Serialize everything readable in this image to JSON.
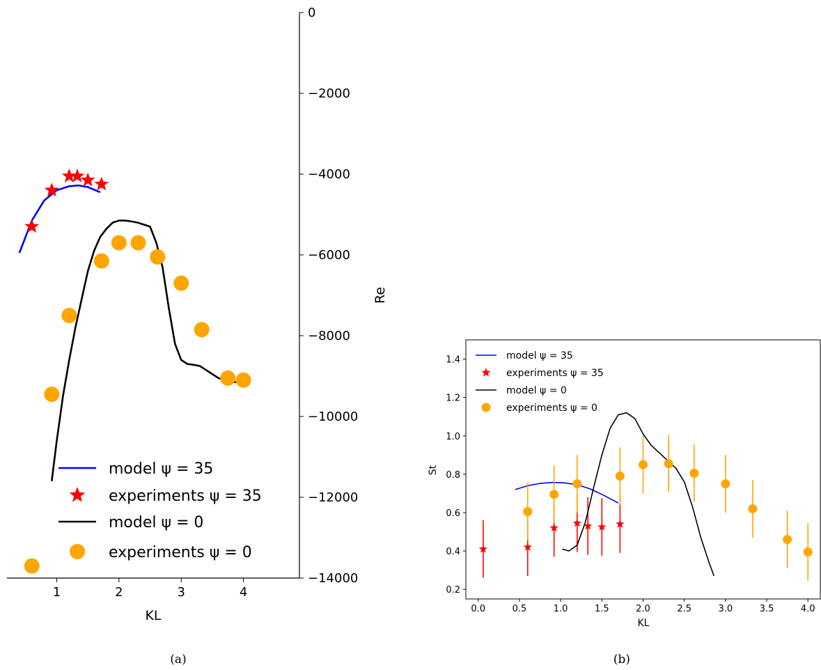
{
  "chart_data": [
    {
      "type": "line",
      "panel_caption": "(a)",
      "xlabel": "KL",
      "ylabel": "Re",
      "xlim": [
        0.2,
        4.9
      ],
      "ylim": [
        -14000,
        0
      ],
      "xticks": [
        1,
        2,
        3,
        4
      ],
      "xtick_labels": [
        "1",
        "2",
        "3",
        "4"
      ],
      "yticks": [
        0,
        -2000,
        -4000,
        -6000,
        -8000,
        -10000,
        -12000,
        -14000
      ],
      "ytick_labels": [
        "0",
        "−2000",
        "−4000",
        "−6000",
        "−8000",
        "−10000",
        "−12000",
        "−14000"
      ],
      "y_axis_position": "right",
      "legend_position": "lower-center",
      "series": [
        {
          "name": "model ψ = 35",
          "kind": "line",
          "color": "#0000ff",
          "x": [
            0.4,
            0.6,
            0.8,
            1.0,
            1.2,
            1.35,
            1.5,
            1.7
          ],
          "y": [
            -5950,
            -5150,
            -4650,
            -4400,
            -4300,
            -4280,
            -4320,
            -4450
          ]
        },
        {
          "name": "experiments ψ = 35",
          "kind": "star",
          "color": "#ff0000",
          "x": [
            0.6,
            0.92,
            1.2,
            1.33,
            1.5,
            1.72
          ],
          "y": [
            -5300,
            -4400,
            -4050,
            -4050,
            -4150,
            -4250
          ]
        },
        {
          "name": "model ψ = 0",
          "kind": "line",
          "color": "#000000",
          "x": [
            0.92,
            1.0,
            1.1,
            1.2,
            1.3,
            1.4,
            1.5,
            1.6,
            1.7,
            1.8,
            1.9,
            2.0,
            2.1,
            2.2,
            2.3,
            2.4,
            2.5,
            2.6,
            2.7,
            2.8,
            2.9,
            3.0,
            3.1,
            3.2,
            3.3,
            3.4,
            3.5,
            3.6,
            3.7,
            3.8,
            3.9,
            4.0
          ],
          "y": [
            -11600,
            -10600,
            -9500,
            -8600,
            -7800,
            -7100,
            -6400,
            -5900,
            -5550,
            -5350,
            -5200,
            -5150,
            -5150,
            -5170,
            -5200,
            -5250,
            -5300,
            -5700,
            -6300,
            -7300,
            -8200,
            -8600,
            -8700,
            -8720,
            -8750,
            -8850,
            -8950,
            -9050,
            -9100,
            -9150,
            -9150,
            -9150
          ]
        },
        {
          "name": "experiments ψ = 0",
          "kind": "circle",
          "color": "#ffa500",
          "x": [
            0.6,
            0.92,
            1.2,
            1.72,
            2.0,
            2.31,
            2.62,
            3.0,
            3.33,
            3.75,
            4.0
          ],
          "y": [
            -13700,
            -9450,
            -7500,
            -6150,
            -5700,
            -5700,
            -6050,
            -6700,
            -7850,
            -9050,
            -9100
          ]
        }
      ]
    },
    {
      "type": "line",
      "panel_caption": "(b)",
      "xlabel": "KL",
      "ylabel": "St",
      "xlim": [
        -0.15,
        4.15
      ],
      "ylim": [
        0.15,
        1.5
      ],
      "xticks": [
        0.0,
        0.5,
        1.0,
        1.5,
        2.0,
        2.5,
        3.0,
        3.5,
        4.0
      ],
      "xtick_labels": [
        "0.0",
        "0.5",
        "1.0",
        "1.5",
        "2.0",
        "2.5",
        "3.0",
        "3.5",
        "4.0"
      ],
      "yticks": [
        0.2,
        0.4,
        0.6,
        0.8,
        1.0,
        1.2,
        1.4
      ],
      "ytick_labels": [
        "0.2",
        "0.4",
        "0.6",
        "0.8",
        "1.0",
        "1.2",
        "1.4"
      ],
      "legend_position": "top-left",
      "series": [
        {
          "name": "model ψ = 35",
          "kind": "line",
          "color": "#0000ff",
          "x": [
            0.45,
            0.6,
            0.75,
            0.9,
            1.05,
            1.2,
            1.35,
            1.5,
            1.7
          ],
          "y": [
            0.72,
            0.74,
            0.752,
            0.757,
            0.755,
            0.745,
            0.725,
            0.695,
            0.65
          ]
        },
        {
          "name": "experiments ψ = 35",
          "kind": "star",
          "color": "#ff0000",
          "x": [
            0.06,
            0.6,
            0.92,
            1.2,
            1.33,
            1.5,
            1.72
          ],
          "y": [
            0.41,
            0.42,
            0.52,
            0.545,
            0.53,
            0.525,
            0.54
          ],
          "err": [
            0.15,
            0.15,
            0.15,
            0.15,
            0.15,
            0.15,
            0.15
          ]
        },
        {
          "name": "model ψ = 0",
          "kind": "line",
          "color": "#000000",
          "x": [
            1.02,
            1.1,
            1.2,
            1.3,
            1.4,
            1.5,
            1.6,
            1.7,
            1.8,
            1.9,
            2.0,
            2.1,
            2.2,
            2.3,
            2.4,
            2.5,
            2.6,
            2.7,
            2.8,
            2.86
          ],
          "y": [
            0.41,
            0.4,
            0.43,
            0.55,
            0.73,
            0.9,
            1.04,
            1.11,
            1.12,
            1.09,
            1.01,
            0.95,
            0.91,
            0.87,
            0.83,
            0.76,
            0.63,
            0.47,
            0.34,
            0.27
          ]
        },
        {
          "name": "experiments ψ = 0",
          "kind": "circle",
          "color": "#ffa500",
          "x": [
            0.6,
            0.92,
            1.2,
            1.72,
            2.0,
            2.31,
            2.62,
            3.0,
            3.33,
            3.75,
            4.0
          ],
          "y": [
            0.605,
            0.695,
            0.75,
            0.79,
            0.85,
            0.855,
            0.805,
            0.75,
            0.62,
            0.46,
            0.395
          ],
          "err": [
            0.15,
            0.15,
            0.15,
            0.15,
            0.15,
            0.15,
            0.15,
            0.15,
            0.15,
            0.15,
            0.15
          ]
        }
      ]
    }
  ]
}
